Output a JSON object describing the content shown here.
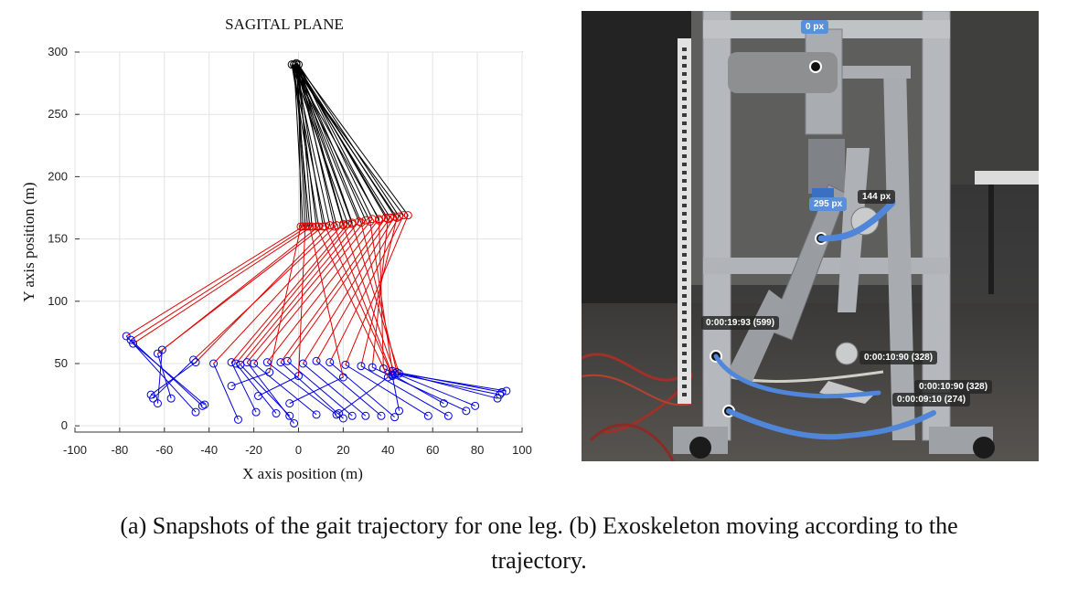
{
  "chart_data": {
    "type": "line",
    "title": "SAGITAL PLANE",
    "xlabel": "X axis position (m)",
    "ylabel": "Y axis position (m)",
    "xlim": [
      -100,
      100
    ],
    "ylim": [
      -5,
      300
    ],
    "xticks": [
      -100,
      -80,
      -60,
      -40,
      -20,
      0,
      20,
      40,
      60,
      80,
      100
    ],
    "yticks": [
      0,
      50,
      100,
      150,
      200,
      250,
      300
    ],
    "grid": true,
    "hip": [
      [
        -2,
        290
      ],
      [
        -1,
        290
      ],
      [
        0,
        290
      ],
      [
        -3,
        290
      ],
      [
        -1,
        291
      ]
    ],
    "snapshots": [
      {
        "knee": [
          2,
          160
        ],
        "ankle": [
          -77,
          72
        ],
        "foot": [
          -46,
          11
        ]
      },
      {
        "knee": [
          4,
          160
        ],
        "ankle": [
          -75,
          69
        ],
        "foot": [
          -43,
          16
        ]
      },
      {
        "knee": [
          6,
          160
        ],
        "ankle": [
          -74,
          66
        ],
        "foot": [
          -42,
          17
        ]
      },
      {
        "knee": [
          9,
          160
        ],
        "ankle": [
          -63,
          58
        ],
        "foot": [
          -57,
          22
        ]
      },
      {
        "knee": [
          11,
          160
        ],
        "ankle": [
          -61,
          61
        ],
        "foot": [
          -63,
          18
        ]
      },
      {
        "knee": [
          14,
          161
        ],
        "ankle": [
          -46,
          51
        ],
        "foot": [
          -66,
          25
        ]
      },
      {
        "knee": [
          17,
          161
        ],
        "ankle": [
          -47,
          53
        ],
        "foot": [
          -65,
          22
        ]
      },
      {
        "knee": [
          20,
          162
        ],
        "ankle": [
          -38,
          50
        ],
        "foot": [
          -27,
          5
        ]
      },
      {
        "knee": [
          22,
          162
        ],
        "ankle": [
          -30,
          51
        ],
        "foot": [
          -19,
          11
        ]
      },
      {
        "knee": [
          24,
          163
        ],
        "ankle": [
          -28,
          50
        ],
        "foot": [
          -10,
          10
        ]
      },
      {
        "knee": [
          27,
          164
        ],
        "ankle": [
          -26,
          49
        ],
        "foot": [
          -4,
          8
        ]
      },
      {
        "knee": [
          30,
          165
        ],
        "ankle": [
          -23,
          51
        ],
        "foot": [
          -2,
          2
        ]
      },
      {
        "knee": [
          33,
          166
        ],
        "ankle": [
          -20,
          50
        ],
        "foot": [
          8,
          9
        ]
      },
      {
        "knee": [
          36,
          166
        ],
        "ankle": [
          -14,
          51
        ],
        "foot": [
          17,
          9
        ]
      },
      {
        "knee": [
          39,
          167
        ],
        "ankle": [
          -8,
          51
        ],
        "foot": [
          20,
          6
        ]
      },
      {
        "knee": [
          41,
          167
        ],
        "ankle": [
          -5,
          52
        ],
        "foot": [
          24,
          8
        ]
      },
      {
        "knee": [
          43,
          168
        ],
        "ankle": [
          2,
          50
        ],
        "foot": [
          30,
          8
        ]
      },
      {
        "knee": [
          45,
          168
        ],
        "ankle": [
          8,
          52
        ],
        "foot": [
          37,
          8
        ]
      },
      {
        "knee": [
          47,
          169
        ],
        "ankle": [
          14,
          51
        ],
        "foot": [
          43,
          7
        ]
      },
      {
        "knee": [
          49,
          169
        ],
        "ankle": [
          21,
          49
        ],
        "foot": [
          58,
          8
        ]
      },
      {
        "knee": [
          44,
          167
        ],
        "ankle": [
          28,
          48
        ],
        "foot": [
          67,
          8
        ]
      },
      {
        "knee": [
          40,
          166
        ],
        "ankle": [
          33,
          47
        ],
        "foot": [
          75,
          12
        ]
      },
      {
        "knee": [
          36,
          165
        ],
        "ankle": [
          38,
          46
        ],
        "foot": [
          79,
          16
        ]
      },
      {
        "knee": [
          32,
          164
        ],
        "ankle": [
          42,
          44
        ],
        "foot": [
          89,
          22
        ]
      },
      {
        "knee": [
          28,
          163
        ],
        "ankle": [
          44,
          43
        ],
        "foot": [
          91,
          27
        ]
      },
      {
        "knee": [
          24,
          162
        ],
        "ankle": [
          45,
          42
        ],
        "foot": [
          93,
          28
        ]
      },
      {
        "knee": [
          20,
          161
        ],
        "ankle": [
          43,
          42
        ],
        "foot": [
          90,
          25
        ]
      },
      {
        "knee": [
          16,
          160
        ],
        "ankle": [
          42,
          41
        ],
        "foot": [
          65,
          18
        ]
      },
      {
        "knee": [
          12,
          160
        ],
        "ankle": [
          42,
          40
        ],
        "foot": [
          45,
          12
        ]
      },
      {
        "knee": [
          8,
          160
        ],
        "ankle": [
          40,
          39
        ],
        "foot": [
          18,
          10
        ]
      },
      {
        "knee": [
          5,
          160
        ],
        "ankle": [
          20,
          39
        ],
        "foot": [
          -4,
          18
        ]
      },
      {
        "knee": [
          3,
          160
        ],
        "ankle": [
          0,
          40
        ],
        "foot": [
          -18,
          24
        ]
      },
      {
        "knee": [
          1,
          160
        ],
        "ankle": [
          -13,
          43
        ],
        "foot": [
          -30,
          32
        ]
      }
    ]
  },
  "photo": {
    "overlay_labels": {
      "top": "0 px",
      "mid_left": "295 px",
      "mid_right": "144 px",
      "time_left": "0:00:19:93 (599)",
      "time_mid": "0:00:10:90 (328)",
      "time_right1": "0:00:10:90 (328)",
      "time_right2": "0:00:09:10 (274)"
    },
    "trace_color": "#4f86d9",
    "frame_color": "#b5b8bc"
  },
  "caption": {
    "line1": "(a) Snapshots of the gait trajectory for one leg. (b) Exoskeleton moving according to the",
    "line2": "trajectory."
  },
  "colors": {
    "thigh": "#000000",
    "shank": "#e00000",
    "foot": "#0000e0"
  }
}
